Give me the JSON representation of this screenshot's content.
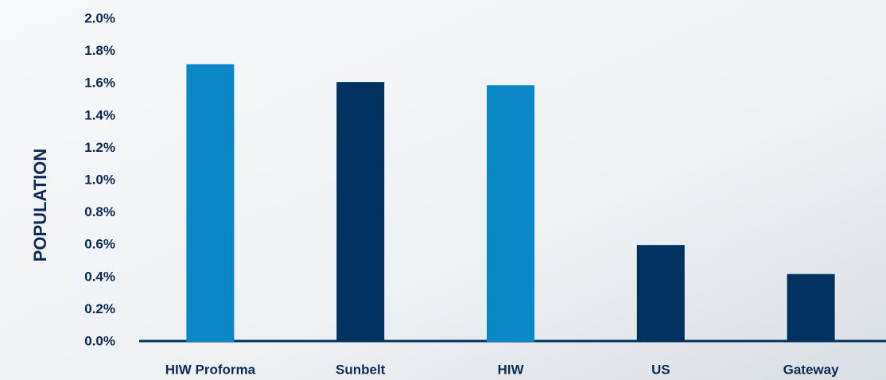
{
  "chart_data": {
    "type": "bar",
    "y_axis_label": "POPULATION",
    "categories": [
      "HIW Proforma",
      "Sunbelt",
      "HIW",
      "US",
      "Gateway"
    ],
    "values": [
      1.72,
      1.61,
      1.59,
      0.6,
      0.42
    ],
    "colors": [
      "#0a88c6",
      "#00325f",
      "#0a88c6",
      "#00325f",
      "#00325f"
    ],
    "ylim": [
      0,
      2.0
    ],
    "yticks": [
      {
        "value": 0,
        "label": "0.0%"
      },
      {
        "value": 0.2,
        "label": "0.2%"
      },
      {
        "value": 0.4,
        "label": "0.4%"
      },
      {
        "value": 0.6,
        "label": "0.6%"
      },
      {
        "value": 0.8,
        "label": "0.8%"
      },
      {
        "value": 1.0,
        "label": "1.0%"
      },
      {
        "value": 1.2,
        "label": "1.2%"
      },
      {
        "value": 1.4,
        "label": "1.4%"
      },
      {
        "value": 1.6,
        "label": "1.6%"
      },
      {
        "value": 1.8,
        "label": "1.8%"
      },
      {
        "value": 2.0,
        "label": "2.0%"
      }
    ],
    "grid": false
  }
}
